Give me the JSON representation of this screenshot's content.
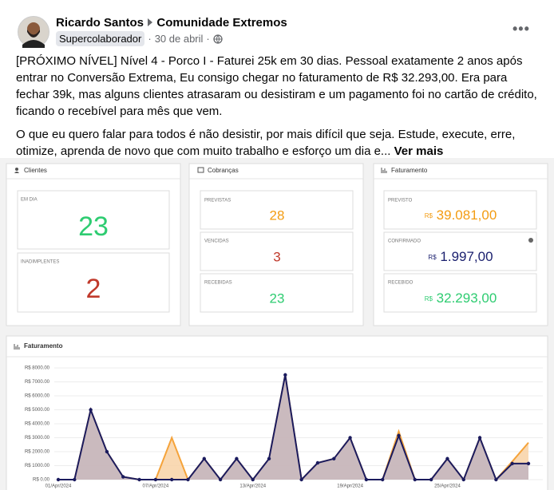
{
  "post": {
    "author": "Ricardo Santos",
    "group": "Comunidade Extremos",
    "badge": "Supercolaborador",
    "date": "30 de abril",
    "paragraphs": [
      "[PRÓXIMO NÍVEL] Nível 4 - Porco I - Faturei 25k em 30 dias. Pessoal exatamente 2 anos após entrar no Conversão Extrema, Eu consigo chegar no faturamento de R$ 32.293,00. Era para fechar 39k, mas alguns clientes atrasaram ou desistiram e um pagamento foi no cartão de crédito, ficando o recebível para mês que vem.",
      "O que eu quero falar para todos é não desistir, por mais difícil que seja. Estude, execute, erre, otimize, aprenda de novo que com muito trabalho e esforço um dia e..."
    ],
    "see_more": "Ver mais"
  },
  "dashboard": {
    "clients": {
      "title": "Clientes",
      "items": [
        {
          "label": "EM DIA",
          "value": 23
        },
        {
          "label": "INADIMPLENTES",
          "value": 2
        }
      ]
    },
    "charges": {
      "title": "Cobranças",
      "items": [
        {
          "label": "PREVISTAS",
          "value": 28
        },
        {
          "label": "VENCIDAS",
          "value": 3
        },
        {
          "label": "RECEBIDAS",
          "value": 23
        }
      ]
    },
    "revenue": {
      "title": "Faturamento",
      "currency": "R$",
      "items": [
        {
          "label": "PREVISTO",
          "value": "39.081,00"
        },
        {
          "label": "CONFIRMADO",
          "value": "1.997,00"
        },
        {
          "label": "RECEBIDO",
          "value": "32.293,00"
        }
      ]
    },
    "chart": {
      "type": "area",
      "title": "Faturamento",
      "categories": [
        "01/Apr/2024",
        null,
        null,
        null,
        null,
        null,
        "07/Apr/2024",
        null,
        null,
        null,
        null,
        null,
        "13/Apr/2024",
        null,
        null,
        null,
        null,
        null,
        "19/Apr/2024",
        null,
        null,
        null,
        null,
        null,
        "25/Apr/2024",
        null,
        null,
        null,
        null,
        null
      ],
      "ylim": [
        0,
        8000
      ],
      "yticks": [
        {
          "value": 0,
          "label": "R$ 0.00"
        },
        {
          "value": 1000,
          "label": "R$ 1000.00"
        },
        {
          "value": 2000,
          "label": "R$ 2000.00"
        },
        {
          "value": 3000,
          "label": "R$ 3000.00"
        },
        {
          "value": 4000,
          "label": "R$ 4000.00"
        },
        {
          "value": 5000,
          "label": "R$ 5000.00"
        },
        {
          "value": 6000,
          "label": "R$ 6000.00"
        },
        {
          "value": 7000,
          "label": "R$ 7000.00"
        },
        {
          "value": 8000,
          "label": "R$ 8000.00"
        }
      ],
      "grid": true,
      "series": [
        {
          "color": "#f5a33a",
          "fill": "#f8d2a6",
          "markers": false,
          "values": [
            0,
            0,
            5000,
            2000,
            200,
            0,
            0,
            3000,
            0,
            1500,
            0,
            1500,
            0,
            1500,
            7500,
            0,
            1200,
            1500,
            3000,
            0,
            0,
            3450,
            0,
            0,
            1500,
            0,
            3000,
            0,
            1300,
            2650
          ]
        },
        {
          "color": "#1b1b5e",
          "fill": "#c2b4c0",
          "markers": true,
          "values": [
            0,
            0,
            5000,
            2000,
            200,
            0,
            0,
            0,
            0,
            1500,
            0,
            1500,
            0,
            1500,
            7500,
            0,
            1200,
            1500,
            3000,
            0,
            0,
            3150,
            0,
            0,
            1500,
            0,
            3000,
            0,
            1150,
            1150
          ]
        }
      ]
    }
  }
}
